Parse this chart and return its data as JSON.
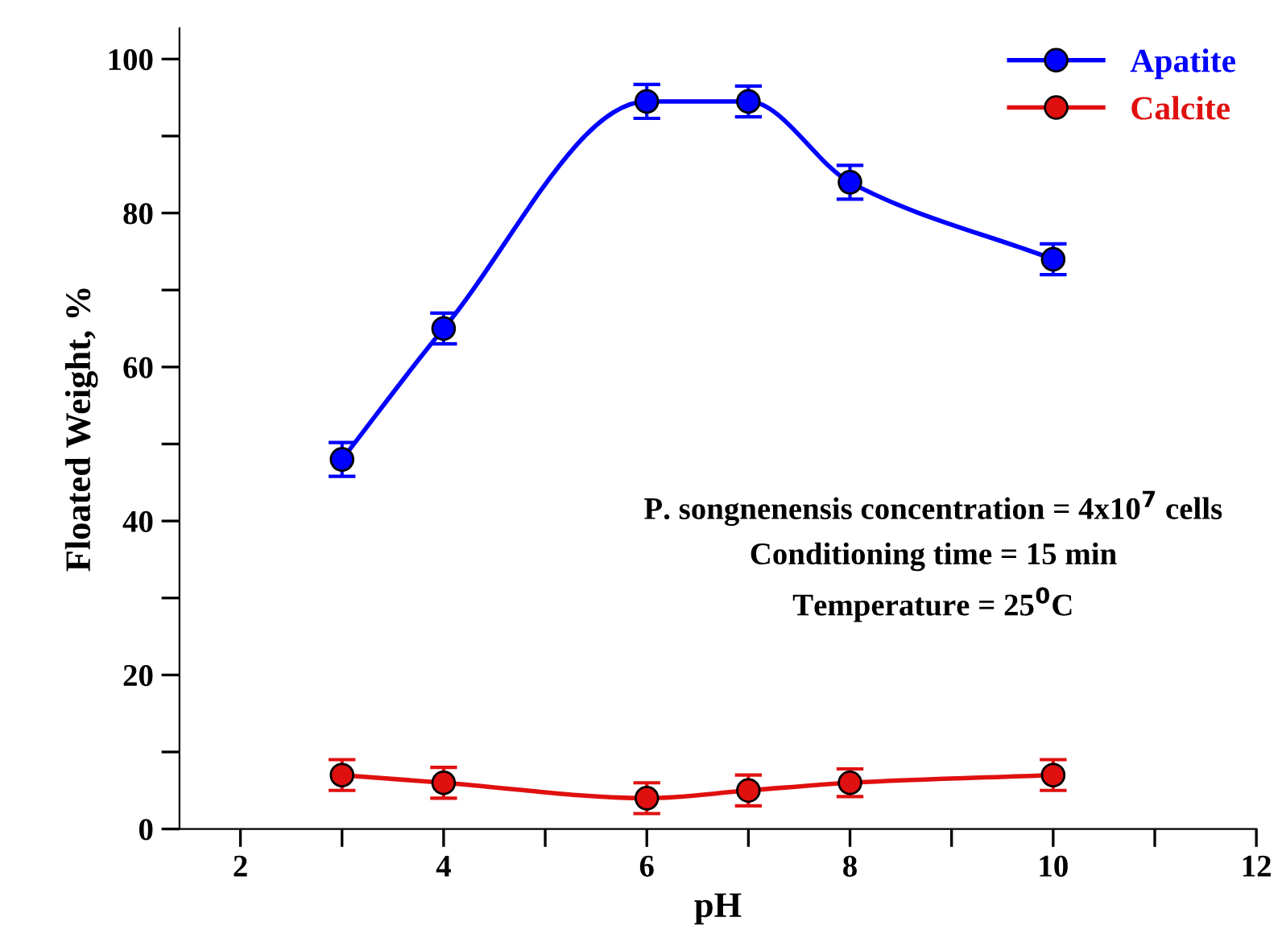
{
  "chart_data": {
    "type": "line",
    "xlabel": "pH",
    "ylabel": "Floated Weight, %",
    "x": [
      3,
      4,
      6,
      7,
      8,
      10
    ],
    "series": [
      {
        "name": "Apatite",
        "color": "#0000ff",
        "values": [
          48,
          65,
          94.5,
          94.5,
          84,
          74
        ],
        "errors": [
          2.2,
          2.0,
          2.2,
          2.0,
          2.2,
          2.0
        ]
      },
      {
        "name": "Calcite",
        "color": "#e01010",
        "values": [
          7,
          6,
          4,
          5,
          6,
          7
        ],
        "errors": [
          2.0,
          2.0,
          2.0,
          2.0,
          1.8,
          2.0
        ]
      }
    ],
    "xlim": [
      1.4,
      12
    ],
    "ylim": [
      0,
      104
    ],
    "xticks": [
      2,
      {
        "value": 3,
        "label": null
      },
      4,
      {
        "value": 5,
        "label": null
      },
      6,
      {
        "value": 7,
        "label": null
      },
      8,
      {
        "value": 9,
        "label": null
      },
      10,
      {
        "value": 11,
        "label": null
      },
      12
    ],
    "yticks": [
      0,
      {
        "value": 10,
        "label": null
      },
      20,
      {
        "value": 30,
        "label": null
      },
      40,
      {
        "value": 50,
        "label": null
      },
      60,
      {
        "value": 70,
        "label": null
      },
      80,
      {
        "value": 90,
        "label": null
      },
      100
    ],
    "annotations": [
      "P. songnenensis concentration = 4x10$^{7}$ cells",
      "Conditioning time = 15 min",
      "Temperature = 25$^{0}$C"
    ],
    "legend": "top right",
    "marker": "circle",
    "line_style": "solid",
    "grid": false
  }
}
